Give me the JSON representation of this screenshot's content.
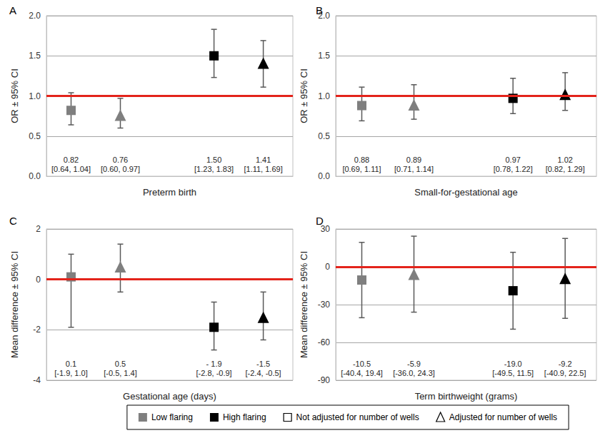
{
  "chart_data": [
    {
      "type": "scatter",
      "title": "A",
      "x_label": "Preterm birth",
      "y_label": "OR ± 95% CI",
      "ylim": [
        0,
        2
      ],
      "yticks": [
        {
          "value": 0,
          "label": "0.0"
        },
        {
          "value": 0.5,
          "label": "0.5"
        },
        {
          "value": 1,
          "label": "1.0"
        },
        {
          "value": 1.5,
          "label": "1.5"
        },
        {
          "value": 2,
          "label": "2.0"
        }
      ],
      "grid": true,
      "data_labels": true,
      "reference_line": 1,
      "series": [
        {
          "name": "Low flaring",
          "color": "#7f7f7f",
          "markers": [
            "square",
            "triangle"
          ],
          "values": [
            0.82,
            0.76
          ],
          "value_labels": [
            "0.82",
            "0.76"
          ],
          "ci_lower": [
            0.64,
            0.6
          ],
          "ci_upper": [
            1.04,
            0.97
          ],
          "ci_labels": [
            "[0.64, 1.04]",
            "[0.60, 0.97]"
          ]
        },
        {
          "name": "High flaring",
          "color": "#000000",
          "markers": [
            "square",
            "triangle"
          ],
          "values": [
            1.5,
            1.41
          ],
          "value_labels": [
            "1.50",
            "1.41"
          ],
          "ci_lower": [
            1.23,
            1.11
          ],
          "ci_upper": [
            1.83,
            1.69
          ],
          "ci_labels": [
            "[1.23, 1.83]",
            "[1.11, 1.69]"
          ]
        }
      ]
    },
    {
      "type": "scatter",
      "title": "B",
      "x_label": "Small-for-gestational age",
      "y_label": "OR ± 95% CI",
      "ylim": [
        0,
        2
      ],
      "yticks": [
        {
          "value": 0,
          "label": "0.0"
        },
        {
          "value": 0.5,
          "label": "0.5"
        },
        {
          "value": 1,
          "label": "1.0"
        },
        {
          "value": 1.5,
          "label": "1.5"
        },
        {
          "value": 2,
          "label": "2.0"
        }
      ],
      "grid": true,
      "data_labels": true,
      "reference_line": 1,
      "series": [
        {
          "name": "Low flaring",
          "color": "#7f7f7f",
          "markers": [
            "square",
            "triangle"
          ],
          "values": [
            0.88,
            0.89
          ],
          "value_labels": [
            "0.88",
            "0.89"
          ],
          "ci_lower": [
            0.69,
            0.71
          ],
          "ci_upper": [
            1.11,
            1.14
          ],
          "ci_labels": [
            "[0.69, 1.11]",
            "[0.71, 1.14]"
          ]
        },
        {
          "name": "High flaring",
          "color": "#000000",
          "markers": [
            "square",
            "triangle"
          ],
          "values": [
            0.97,
            1.02
          ],
          "value_labels": [
            "0.97",
            "1.02"
          ],
          "ci_lower": [
            0.78,
            0.82
          ],
          "ci_upper": [
            1.22,
            1.29
          ],
          "ci_labels": [
            "[0.78, 1.22]",
            "[0.82, 1.29]"
          ]
        }
      ]
    },
    {
      "type": "scatter",
      "title": "C",
      "x_label": "Gestational age (days)",
      "y_label": "Mean difference ± 95% CI",
      "ylim": [
        -4,
        2
      ],
      "yticks": [
        -4,
        -2,
        0,
        2
      ],
      "grid": true,
      "data_labels": true,
      "reference_line": 0,
      "series": [
        {
          "name": "Low flaring",
          "color": "#7f7f7f",
          "markers": [
            "square",
            "triangle"
          ],
          "values": [
            0.1,
            0.5
          ],
          "value_labels": [
            "0.1",
            "0.5"
          ],
          "ci_lower": [
            -1.9,
            -0.5
          ],
          "ci_upper": [
            1.0,
            1.4
          ],
          "ci_labels": [
            "[-1.9, 1.0]",
            "[-0.5, 1.4]"
          ]
        },
        {
          "name": "High flaring",
          "color": "#000000",
          "markers": [
            "square",
            "triangle"
          ],
          "values": [
            -1.9,
            -1.5
          ],
          "value_labels": [
            "- 1.9",
            "-1.5"
          ],
          "ci_lower": [
            -2.8,
            -2.4
          ],
          "ci_upper": [
            -0.9,
            -0.5
          ],
          "ci_labels": [
            "[-2.8, -0.9]",
            "[-2.4, -0.5]"
          ]
        }
      ]
    },
    {
      "type": "scatter",
      "title": "D",
      "x_label": "Term birthweight (grams)",
      "y_label": "Mean difference ± 95% CI",
      "ylim": [
        -90,
        30
      ],
      "yticks": [
        -90,
        -60,
        -30,
        0,
        30
      ],
      "grid": true,
      "data_labels": true,
      "reference_line": 0,
      "series": [
        {
          "name": "Low flaring",
          "color": "#7f7f7f",
          "markers": [
            "square",
            "triangle"
          ],
          "values": [
            -10.5,
            -5.9
          ],
          "value_labels": [
            "-10.5",
            "-5.9"
          ],
          "ci_lower": [
            -40.4,
            -36.0
          ],
          "ci_upper": [
            19.4,
            24.3
          ],
          "ci_labels": [
            "[-40.4, 19.4]",
            "[-36.0, 24.3]"
          ]
        },
        {
          "name": "High flaring",
          "color": "#000000",
          "markers": [
            "square",
            "triangle"
          ],
          "values": [
            -19.0,
            -9.2
          ],
          "value_labels": [
            "-19.0",
            "-9.2"
          ],
          "ci_lower": [
            -49.5,
            -40.9
          ],
          "ci_upper": [
            11.5,
            22.5
          ],
          "ci_labels": [
            "[-49.5, 11.5]",
            "[-40.9, 22.5]"
          ]
        }
      ]
    }
  ],
  "legend_items": [
    {
      "label": "Low flaring",
      "color": "#7f7f7f",
      "marker": "square"
    },
    {
      "label": "High flaring",
      "color": "#000000",
      "marker": "square"
    },
    {
      "label": "Not adjusted for number of wells",
      "color": "#000000",
      "marker": "empty-square"
    },
    {
      "label": "Adjusted for number of wells",
      "color": "#000000",
      "marker": "empty-triangle"
    }
  ]
}
